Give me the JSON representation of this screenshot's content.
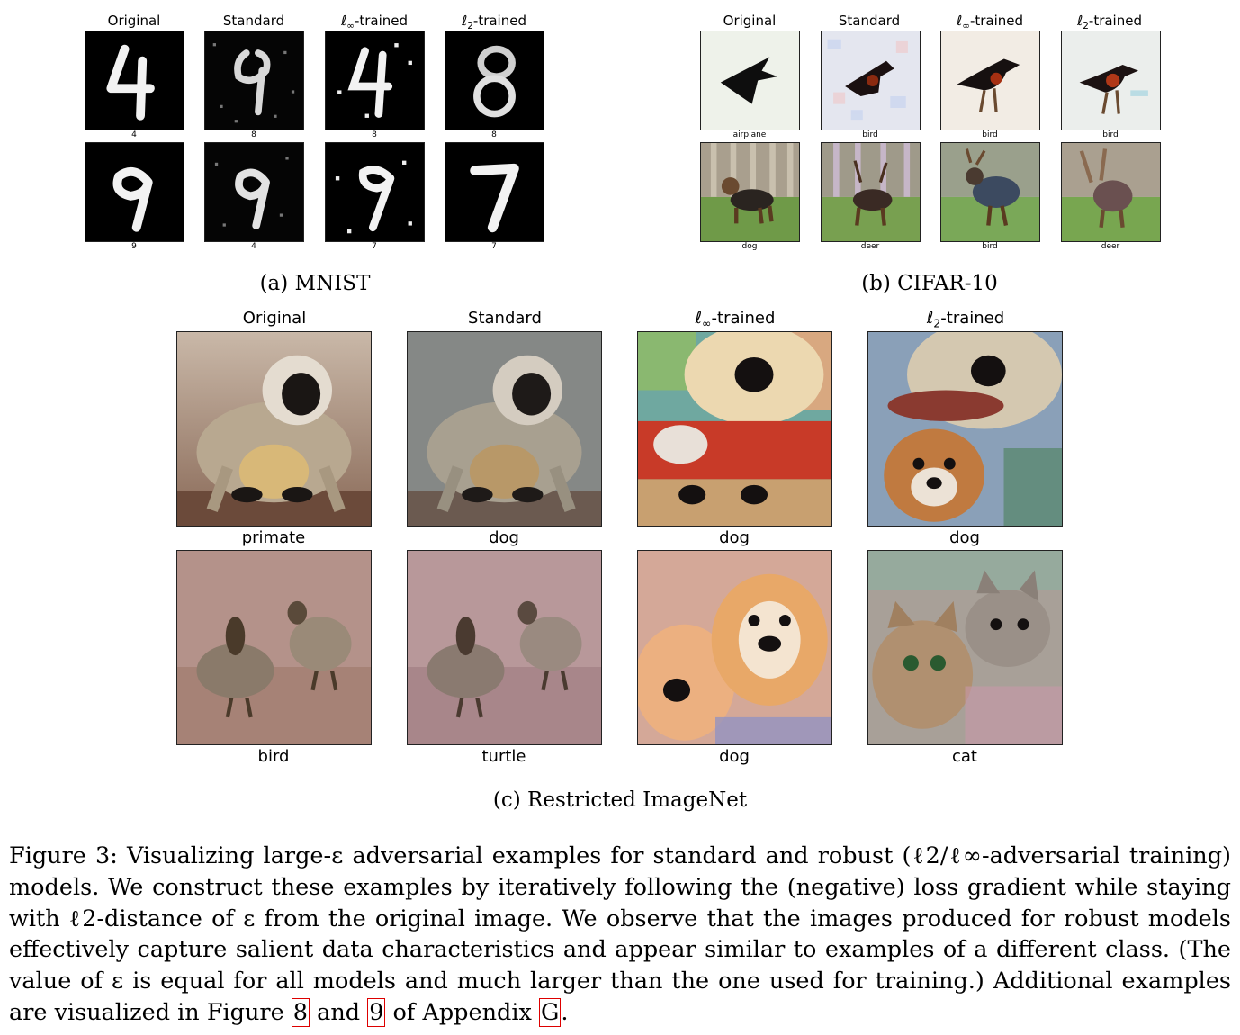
{
  "panels": {
    "mnist": {
      "caption": "(a) MNIST",
      "headers": [
        "Original",
        "Standard",
        "ℓ∞-trained",
        "ℓ2-trained"
      ],
      "rows": [
        {
          "labels": [
            "4",
            "8",
            "8",
            "8"
          ]
        },
        {
          "labels": [
            "9",
            "4",
            "7",
            "7"
          ]
        }
      ]
    },
    "cifar": {
      "caption": "(b) CIFAR-10",
      "headers": [
        "Original",
        "Standard",
        "ℓ∞-trained",
        "ℓ2-trained"
      ],
      "rows": [
        {
          "labels": [
            "airplane",
            "bird",
            "bird",
            "bird"
          ]
        },
        {
          "labels": [
            "dog",
            "deer",
            "bird",
            "deer"
          ]
        }
      ]
    },
    "imagenet": {
      "caption": "(c) Restricted ImageNet",
      "headers": [
        "Original",
        "Standard",
        "ℓ∞-trained",
        "ℓ2-trained"
      ],
      "rows": [
        {
          "labels": [
            "primate",
            "dog",
            "dog",
            "dog"
          ]
        },
        {
          "labels": [
            "bird",
            "turtle",
            "dog",
            "cat"
          ]
        }
      ]
    }
  },
  "caption": {
    "part1": "Figure 3: Visualizing large-ε adversarial examples for standard and robust (ℓ2/ℓ∞-adversarial training) models. We construct these examples by iteratively following the (negative) loss gradient while staying with ℓ2-distance of ε from the original image. We observe that the images produced for robust models effectively capture salient data characteristics and appear similar to examples of a different class. (The value of ε is equal for all models and much larger than the one used for training.) Additional examples are visualized in Figure ",
    "ref1": "8",
    "part2": " and ",
    "ref2": "9",
    "part3": " of Appendix ",
    "ref3": "G",
    "part4": "."
  },
  "colors": {
    "mnist_bg": "#000000",
    "mnist_stroke": "#f0f0f0",
    "cifar_plane_bg": "#eef2ea",
    "cifar_dog_bg": "#6f9a48",
    "ref_border": "#dd0000"
  }
}
